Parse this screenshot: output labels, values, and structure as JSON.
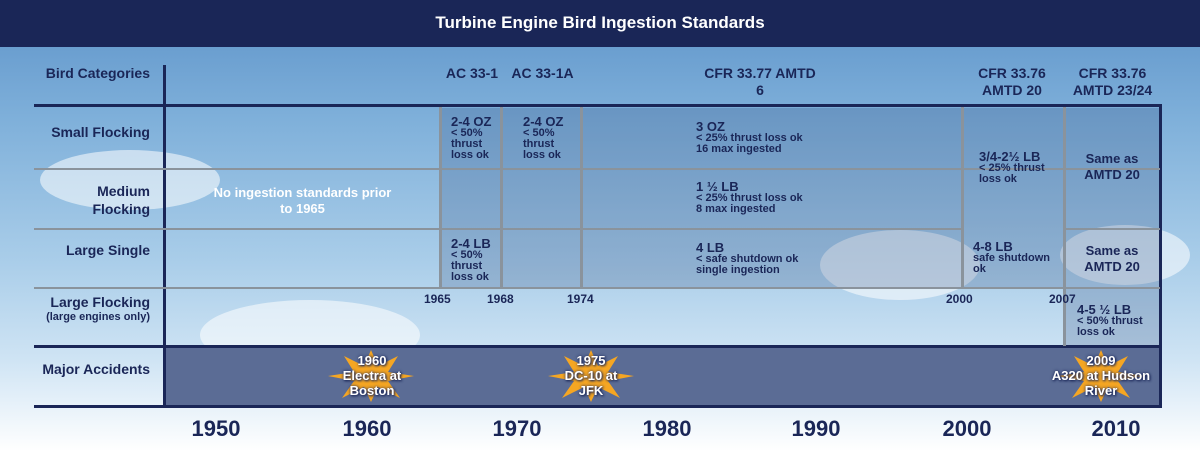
{
  "title": "Turbine Engine Bird Ingestion Standards",
  "header": {
    "bird_categories": "Bird Categories",
    "ac33_1": "AC 33-1",
    "ac33_1a": "AC 33-1A",
    "cfr3377": "CFR 33.77 AMTD 6",
    "cfr3376_20": "CFR 33.76 AMTD 20",
    "cfr3376_2324": "CFR 33.76 AMTD 23/24"
  },
  "rows": {
    "small_flocking": "Small Flocking",
    "medium_flocking": "Medium Flocking",
    "large_single": "Large Single",
    "large_flocking": "Large Flocking",
    "large_flocking_note": "(large engines only)",
    "major_accidents": "Major Accidents"
  },
  "cells": {
    "no_standards": "No ingestion standards prior to 1965",
    "ac1_small_title": "2-4 OZ",
    "ac1_small_sub": "< 50% thrust loss ok",
    "ac1a_small_title": "2-4 OZ",
    "ac1a_small_sub": "< 50% thrust loss ok",
    "amtd6_small_title": "3 OZ",
    "amtd6_small_sub1": "< 25% thrust loss ok",
    "amtd6_small_sub2": "16 max ingested",
    "amtd6_medium_title": "1 ½ LB",
    "amtd6_medium_sub1": "< 25% thrust loss ok",
    "amtd6_medium_sub2": "8 max ingested",
    "ac1_large_title": "2-4 LB",
    "ac1_large_sub": "< 50% thrust loss ok",
    "amtd6_large_title": "4 LB",
    "amtd6_large_sub1": "< safe shutdown ok",
    "amtd6_large_sub2": "single ingestion",
    "amtd20_sm_title": "3/4-2½ LB",
    "amtd20_sm_sub": "< 25% thrust loss ok",
    "amtd20_large_title": "4-8 LB",
    "amtd20_large_sub": "safe shutdown ok",
    "amtd2324_sm": "Same as AMTD 20",
    "amtd2324_large": "Same as AMTD 20",
    "amtd2324_lf_title": "4-5 ½ LB",
    "amtd2324_lf_sub": "< 50% thrust loss ok"
  },
  "year_ticks": [
    "1965",
    "1968",
    "1974",
    "2000",
    "2007"
  ],
  "accidents": [
    {
      "year": "1960",
      "label": "Electra at Boston"
    },
    {
      "year": "1975",
      "label": "DC-10 at JFK"
    },
    {
      "year": "2009",
      "label": "A320 at Hudson River"
    }
  ],
  "axis_years": [
    "1950",
    "1960",
    "1970",
    "1980",
    "1990",
    "2000",
    "2010"
  ],
  "colors": {
    "navy": "#1a2657",
    "burst": "#f5a623",
    "accident_band": "#5b6c95"
  }
}
